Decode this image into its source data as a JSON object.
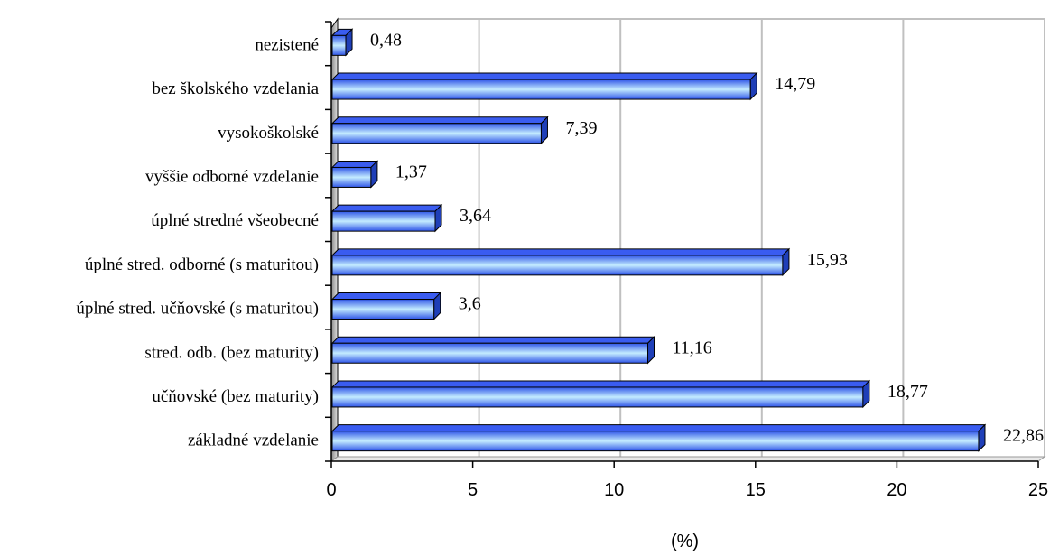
{
  "chart_data": {
    "type": "bar",
    "orientation": "horizontal",
    "categories": [
      "nezistené",
      "bez školského vzdelania",
      "vysokoškolské",
      "vyššie odborné vzdelanie",
      "úplné stredné všeobecné",
      "úplné stred. odborné (s maturitou)",
      "úplné stred. učňovské (s maturitou)",
      "stred. odb. (bez maturity)",
      "učňovské (bez maturity)",
      "základné vzdelanie"
    ],
    "values": [
      0.48,
      14.79,
      7.39,
      1.37,
      3.64,
      15.93,
      3.6,
      11.16,
      18.77,
      22.86
    ],
    "value_labels": [
      "0,48",
      "14,79",
      "7,39",
      "1,37",
      "3,64",
      "15,93",
      "3,6",
      "11,16",
      "18,77",
      "22,86"
    ],
    "title": "",
    "xlabel": "(%)",
    "ylabel": "",
    "xlim": [
      0,
      25
    ],
    "x_ticks": [
      0,
      5,
      10,
      15,
      20,
      25
    ],
    "grid": "vertical",
    "legend": "none",
    "bar_color": "#3366ff",
    "bar_highlight_color": "#b8e4ff",
    "grid_color": "#c0c0c0"
  }
}
